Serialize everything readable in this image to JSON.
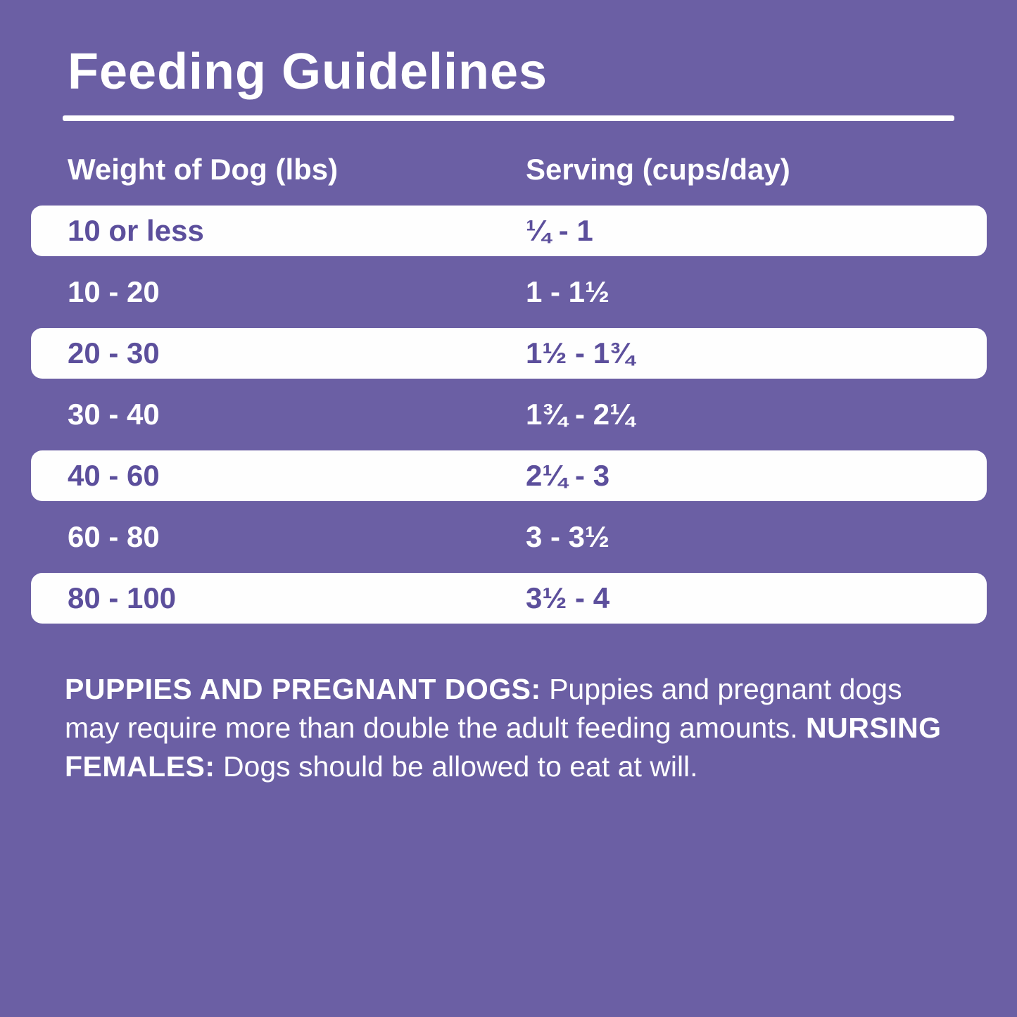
{
  "page": {
    "title": "Feeding Guidelines",
    "colors": {
      "background": "#6b5fa4",
      "band": "#fefefe",
      "band_text": "#5c4f9c",
      "text": "#ffffff"
    }
  },
  "table": {
    "headers": {
      "weight": "Weight of Dog (lbs)",
      "serving": "Serving (cups/day)"
    },
    "rows": [
      {
        "weight": "10 or less",
        "serving": "¼ - 1",
        "highlighted": true
      },
      {
        "weight": "10 - 20",
        "serving": "1 - 1½",
        "highlighted": false
      },
      {
        "weight": "20 - 30",
        "serving": "1½ - 1¾",
        "highlighted": true
      },
      {
        "weight": "30 - 40",
        "serving": "1¾ - 2¼",
        "highlighted": false
      },
      {
        "weight": "40 - 60",
        "serving": "2¼ - 3",
        "highlighted": true
      },
      {
        "weight": "60 - 80",
        "serving": "3 - 3½",
        "highlighted": false
      },
      {
        "weight": "80 - 100",
        "serving": "3½ - 4",
        "highlighted": true
      }
    ]
  },
  "footer": {
    "puppies_label": "PUPPIES AND PREGNANT DOGS:",
    "puppies_text": " Puppies and pregnant dogs may require more than double the adult feeding amounts. ",
    "nursing_label": "NURSING FEMALES:",
    "nursing_text": " Dogs should be allowed to eat at will."
  },
  "chart_data": {
    "type": "table",
    "title": "Feeding Guidelines",
    "columns": [
      "Weight of Dog (lbs)",
      "Serving (cups/day)"
    ],
    "rows": [
      [
        "10 or less",
        "¼ - 1"
      ],
      [
        "10 - 20",
        "1 - 1½"
      ],
      [
        "20 - 30",
        "1½ - 1¾"
      ],
      [
        "30 - 40",
        "1¾ - 2¼"
      ],
      [
        "40 - 60",
        "2¼ - 3"
      ],
      [
        "60 - 80",
        "3 - 3½"
      ],
      [
        "80 - 100",
        "3½ - 4"
      ]
    ]
  }
}
